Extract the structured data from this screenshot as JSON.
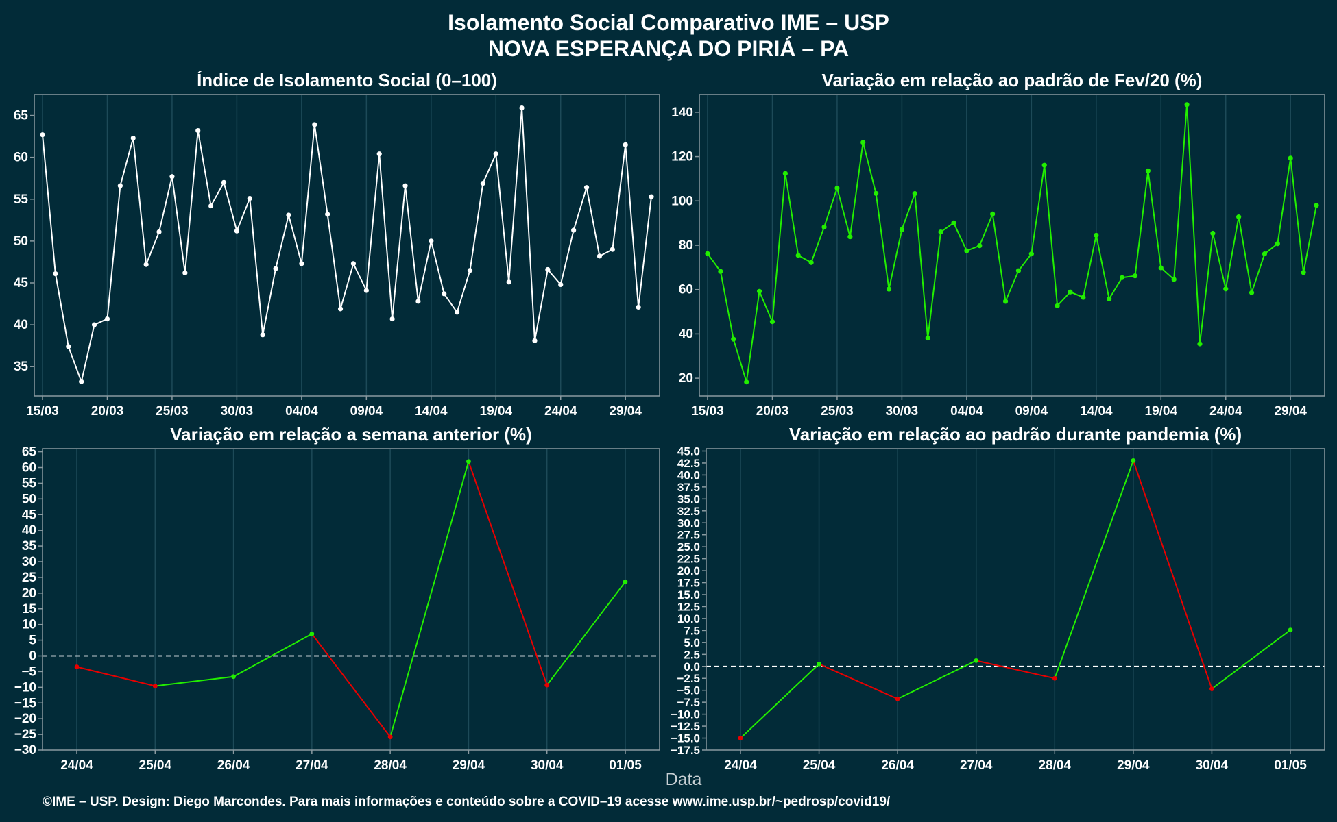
{
  "figure": {
    "title_line1": "Isolamento Social Comparativo IME – USP",
    "title_line2": "NOVA ESPERANÇA DO PIRIÁ – PA",
    "xlabel": "Data",
    "footer": "©IME – USP. Design: Diego Marcondes. Para mais informações e conteúdo sobre a COVID–19 acesse www.ime.usp.br/~pedrosp/covid19/"
  },
  "colors": {
    "background": "#022b38",
    "panel_border": "#8a9aa0",
    "grid": "#1d4a58",
    "white_series": "#ffffff",
    "green": "#22ee00",
    "red": "#e80000"
  },
  "chart_data": [
    {
      "type": "line",
      "title": "Índice de Isolamento Social (0–100)",
      "x_ticks": [
        "15/03",
        "20/03",
        "25/03",
        "30/03",
        "04/04",
        "09/04",
        "14/04",
        "19/04",
        "24/04",
        "29/04"
      ],
      "x_tick_index": [
        0,
        5,
        10,
        15,
        20,
        25,
        30,
        35,
        40,
        45
      ],
      "ylim": [
        31.5,
        67.5
      ],
      "y_ticks": [
        35,
        40,
        45,
        50,
        55,
        60,
        65
      ],
      "color": "white",
      "values": [
        62.7,
        46.1,
        37.4,
        33.2,
        40.0,
        40.7,
        56.6,
        62.3,
        47.2,
        51.1,
        57.7,
        46.2,
        63.2,
        54.2,
        57.0,
        51.2,
        55.1,
        38.8,
        46.7,
        53.1,
        47.3,
        63.9,
        53.2,
        41.9,
        47.3,
        44.1,
        60.4,
        40.7,
        56.6,
        42.8,
        50.0,
        43.7,
        41.5,
        46.5,
        56.9,
        60.4,
        45.1,
        65.9,
        38.1,
        46.6,
        44.8,
        51.3,
        56.4,
        48.2,
        49.0,
        61.5,
        42.1,
        55.3
      ]
    },
    {
      "type": "line",
      "title": "Variação em relação ao padrão de Fev/20 (%)",
      "x_ticks": [
        "15/03",
        "20/03",
        "25/03",
        "30/03",
        "04/04",
        "09/04",
        "14/04",
        "19/04",
        "24/04",
        "29/04"
      ],
      "x_tick_index": [
        0,
        5,
        10,
        15,
        20,
        25,
        30,
        35,
        40,
        45
      ],
      "ylim": [
        12,
        148
      ],
      "y_ticks": [
        20,
        40,
        60,
        80,
        100,
        120,
        140
      ],
      "color": "green",
      "values": [
        76.2,
        68.2,
        37.6,
        18.3,
        59.2,
        45.5,
        112.4,
        75.4,
        72.2,
        88.2,
        105.8,
        83.8,
        126.4,
        103.4,
        60.2,
        87.1,
        103.3,
        38.1,
        86.0,
        90.1,
        77.5,
        79.8,
        94.1,
        54.7,
        68.5,
        76.1,
        116.1,
        52.7,
        58.9,
        56.5,
        84.5,
        55.8,
        65.4,
        66.2,
        113.6,
        69.8,
        64.6,
        143.4,
        35.5,
        85.4,
        60.3,
        92.8,
        58.6,
        76.1,
        80.7,
        119.3,
        67.7,
        98.0
      ]
    },
    {
      "type": "line",
      "title": "Variação em relação a semana anterior (%)",
      "categories": [
        "24/04",
        "25/04",
        "26/04",
        "27/04",
        "28/04",
        "29/04",
        "30/04",
        "01/05"
      ],
      "ylim": [
        -30,
        66
      ],
      "y_ticks": [
        -30,
        -25,
        -20,
        -15,
        -10,
        -5,
        0,
        5,
        10,
        15,
        20,
        25,
        30,
        35,
        40,
        45,
        50,
        55,
        60,
        65
      ],
      "y_tick_labels": [
        "−30",
        "−25",
        "−20",
        "−15",
        "−10",
        "−5",
        "0",
        "5",
        "10",
        "15",
        "20",
        "25",
        "30",
        "35",
        "40",
        "45",
        "50",
        "55",
        "60",
        "65"
      ],
      "reference_line": 0,
      "color_rule": "segment green when increasing, red when decreasing",
      "values": [
        -3.5,
        -9.6,
        -6.6,
        7.0,
        -25.8,
        61.9,
        -9.3,
        23.6
      ]
    },
    {
      "type": "line",
      "title": "Variação em relação ao padrão durante pandemia (%)",
      "categories": [
        "24/04",
        "25/04",
        "26/04",
        "27/04",
        "28/04",
        "29/04",
        "30/04",
        "01/05"
      ],
      "ylim": [
        -17.5,
        45.5
      ],
      "y_ticks": [
        -17.5,
        -15,
        -12.5,
        -10,
        -7.5,
        -5,
        -2.5,
        0,
        2.5,
        5,
        7.5,
        10,
        12.5,
        15,
        17.5,
        20,
        22.5,
        25,
        27.5,
        30,
        32.5,
        35,
        37.5,
        40,
        42.5,
        45
      ],
      "y_tick_labels": [
        "−17.5",
        "−15.0",
        "−12.5",
        "−10.0",
        "−7.5",
        "−5.0",
        "−2.5",
        "0.0",
        "2.5",
        "5.0",
        "7.5",
        "10.0",
        "12.5",
        "15.0",
        "17.5",
        "20.0",
        "22.5",
        "25.0",
        "27.5",
        "30.0",
        "32.5",
        "35.0",
        "37.5",
        "40.0",
        "42.5",
        "45.0"
      ],
      "reference_line": 0,
      "color_rule": "segment green when increasing, red when decreasing",
      "values": [
        -15.0,
        0.5,
        -6.8,
        1.2,
        -2.5,
        43.0,
        -4.7,
        7.6
      ]
    }
  ]
}
